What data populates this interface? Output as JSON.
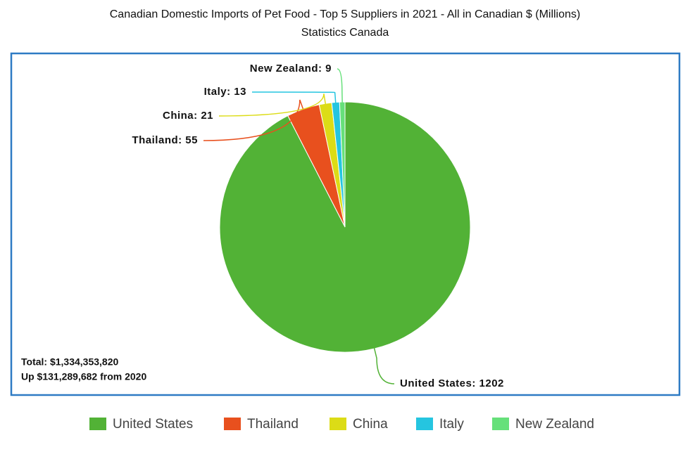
{
  "chart_data": {
    "type": "pie",
    "title": "Canadian Domestic Imports of Pet Food - Top 5 Suppliers in 2021 - All in Canadian $ (Millions)",
    "subtitle": "Statistics Canada",
    "categories": [
      "United States",
      "Thailand",
      "China",
      "Italy",
      "New Zealand"
    ],
    "values": [
      1202,
      55,
      21,
      13,
      9
    ],
    "value_labels": [
      "United States: 1202",
      "Thailand: 55",
      "China: 21",
      "Italy: 13",
      "New Zealand: 9"
    ],
    "colors": [
      "#52b236",
      "#e8501e",
      "#dcdc16",
      "#25c5e0",
      "#66e07a"
    ],
    "annotations": [
      "Total:  $1,334,353,820",
      "Up $131,289,682 from 2020"
    ],
    "legend": "bottom"
  }
}
